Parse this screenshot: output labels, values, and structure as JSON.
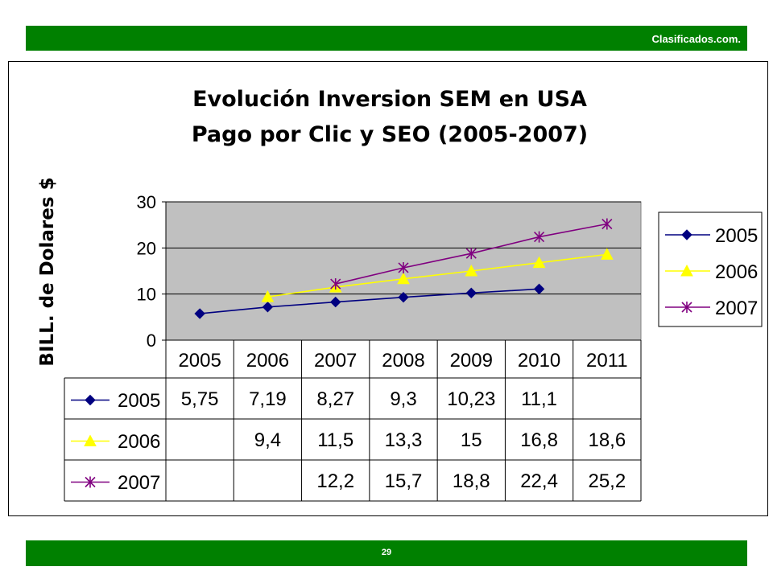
{
  "header": {
    "brand": "Clasificados.com."
  },
  "footer": {
    "page_number": "29"
  },
  "colors": {
    "bar": "#008000",
    "plot_bg": "#c0c0c0",
    "s2005": "#000080",
    "s2006": "#ffff00",
    "s2007": "#800080"
  },
  "chart_data": {
    "type": "line",
    "title": [
      "Evolución Inversion SEM en USA",
      "Pago por Clic y SEO (2005-2007)"
    ],
    "ylabel": "BILL. de Dolares $",
    "xlabel": "",
    "categories": [
      "2005",
      "2006",
      "2007",
      "2008",
      "2009",
      "2010",
      "2011"
    ],
    "ylim": [
      0,
      30
    ],
    "yticks": [
      "0",
      "10",
      "20",
      "30"
    ],
    "grid": true,
    "legend": "right",
    "series": [
      {
        "name": "2005",
        "marker": "diamond",
        "color": "#000080",
        "values": [
          5.75,
          7.19,
          8.27,
          9.3,
          10.23,
          11.1,
          null
        ],
        "labels": [
          "5,75",
          "7,19",
          "8,27",
          "9,3",
          "10,23",
          "11,1",
          ""
        ]
      },
      {
        "name": "2006",
        "marker": "triangle",
        "color": "#ffff00",
        "values": [
          null,
          9.4,
          11.5,
          13.3,
          15,
          16.8,
          18.6
        ],
        "labels": [
          "",
          "9,4",
          "11,5",
          "13,3",
          "15",
          "16,8",
          "18,6"
        ]
      },
      {
        "name": "2007",
        "marker": "star",
        "color": "#800080",
        "values": [
          null,
          null,
          12.2,
          15.7,
          18.8,
          22.4,
          25.2
        ],
        "labels": [
          "",
          "",
          "12,2",
          "15,7",
          "18,8",
          "22,4",
          "25,2"
        ]
      }
    ]
  }
}
